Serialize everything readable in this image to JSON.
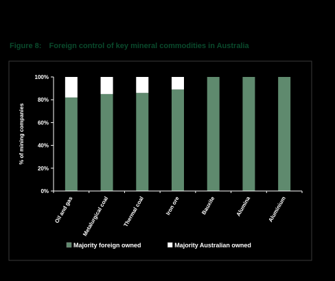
{
  "figure": {
    "label": "Figure 8:",
    "caption": "Foreign control of key mineral commodities in Australia"
  },
  "colors": {
    "background": "#000000",
    "plot_frame": "#3a3a3a",
    "foreign": "#5f8a6e",
    "australian": "#ffffff",
    "text": "#ffffff",
    "title": "#0a4a2c"
  },
  "chart_data": {
    "type": "bar",
    "stacked": true,
    "categories": [
      "Oil and gas",
      "Metalurgical coal",
      "Thermal coal",
      "Iron ore",
      "Bauxite",
      "Alumina",
      "Aluminium"
    ],
    "series": [
      {
        "name": "Majority foreign owned",
        "values": [
          82,
          85,
          86,
          89,
          100,
          100,
          100
        ]
      },
      {
        "name": "Majority Australian owned",
        "values": [
          18,
          15,
          14,
          11,
          0,
          0,
          0
        ]
      }
    ],
    "title": "",
    "xlabel": "",
    "ylabel": "% of mining companies",
    "ylim": [
      0,
      100
    ],
    "yticks": [
      "0%",
      "20%",
      "40%",
      "60%",
      "80%",
      "100%"
    ],
    "grid": false,
    "legend_position": "bottom"
  }
}
